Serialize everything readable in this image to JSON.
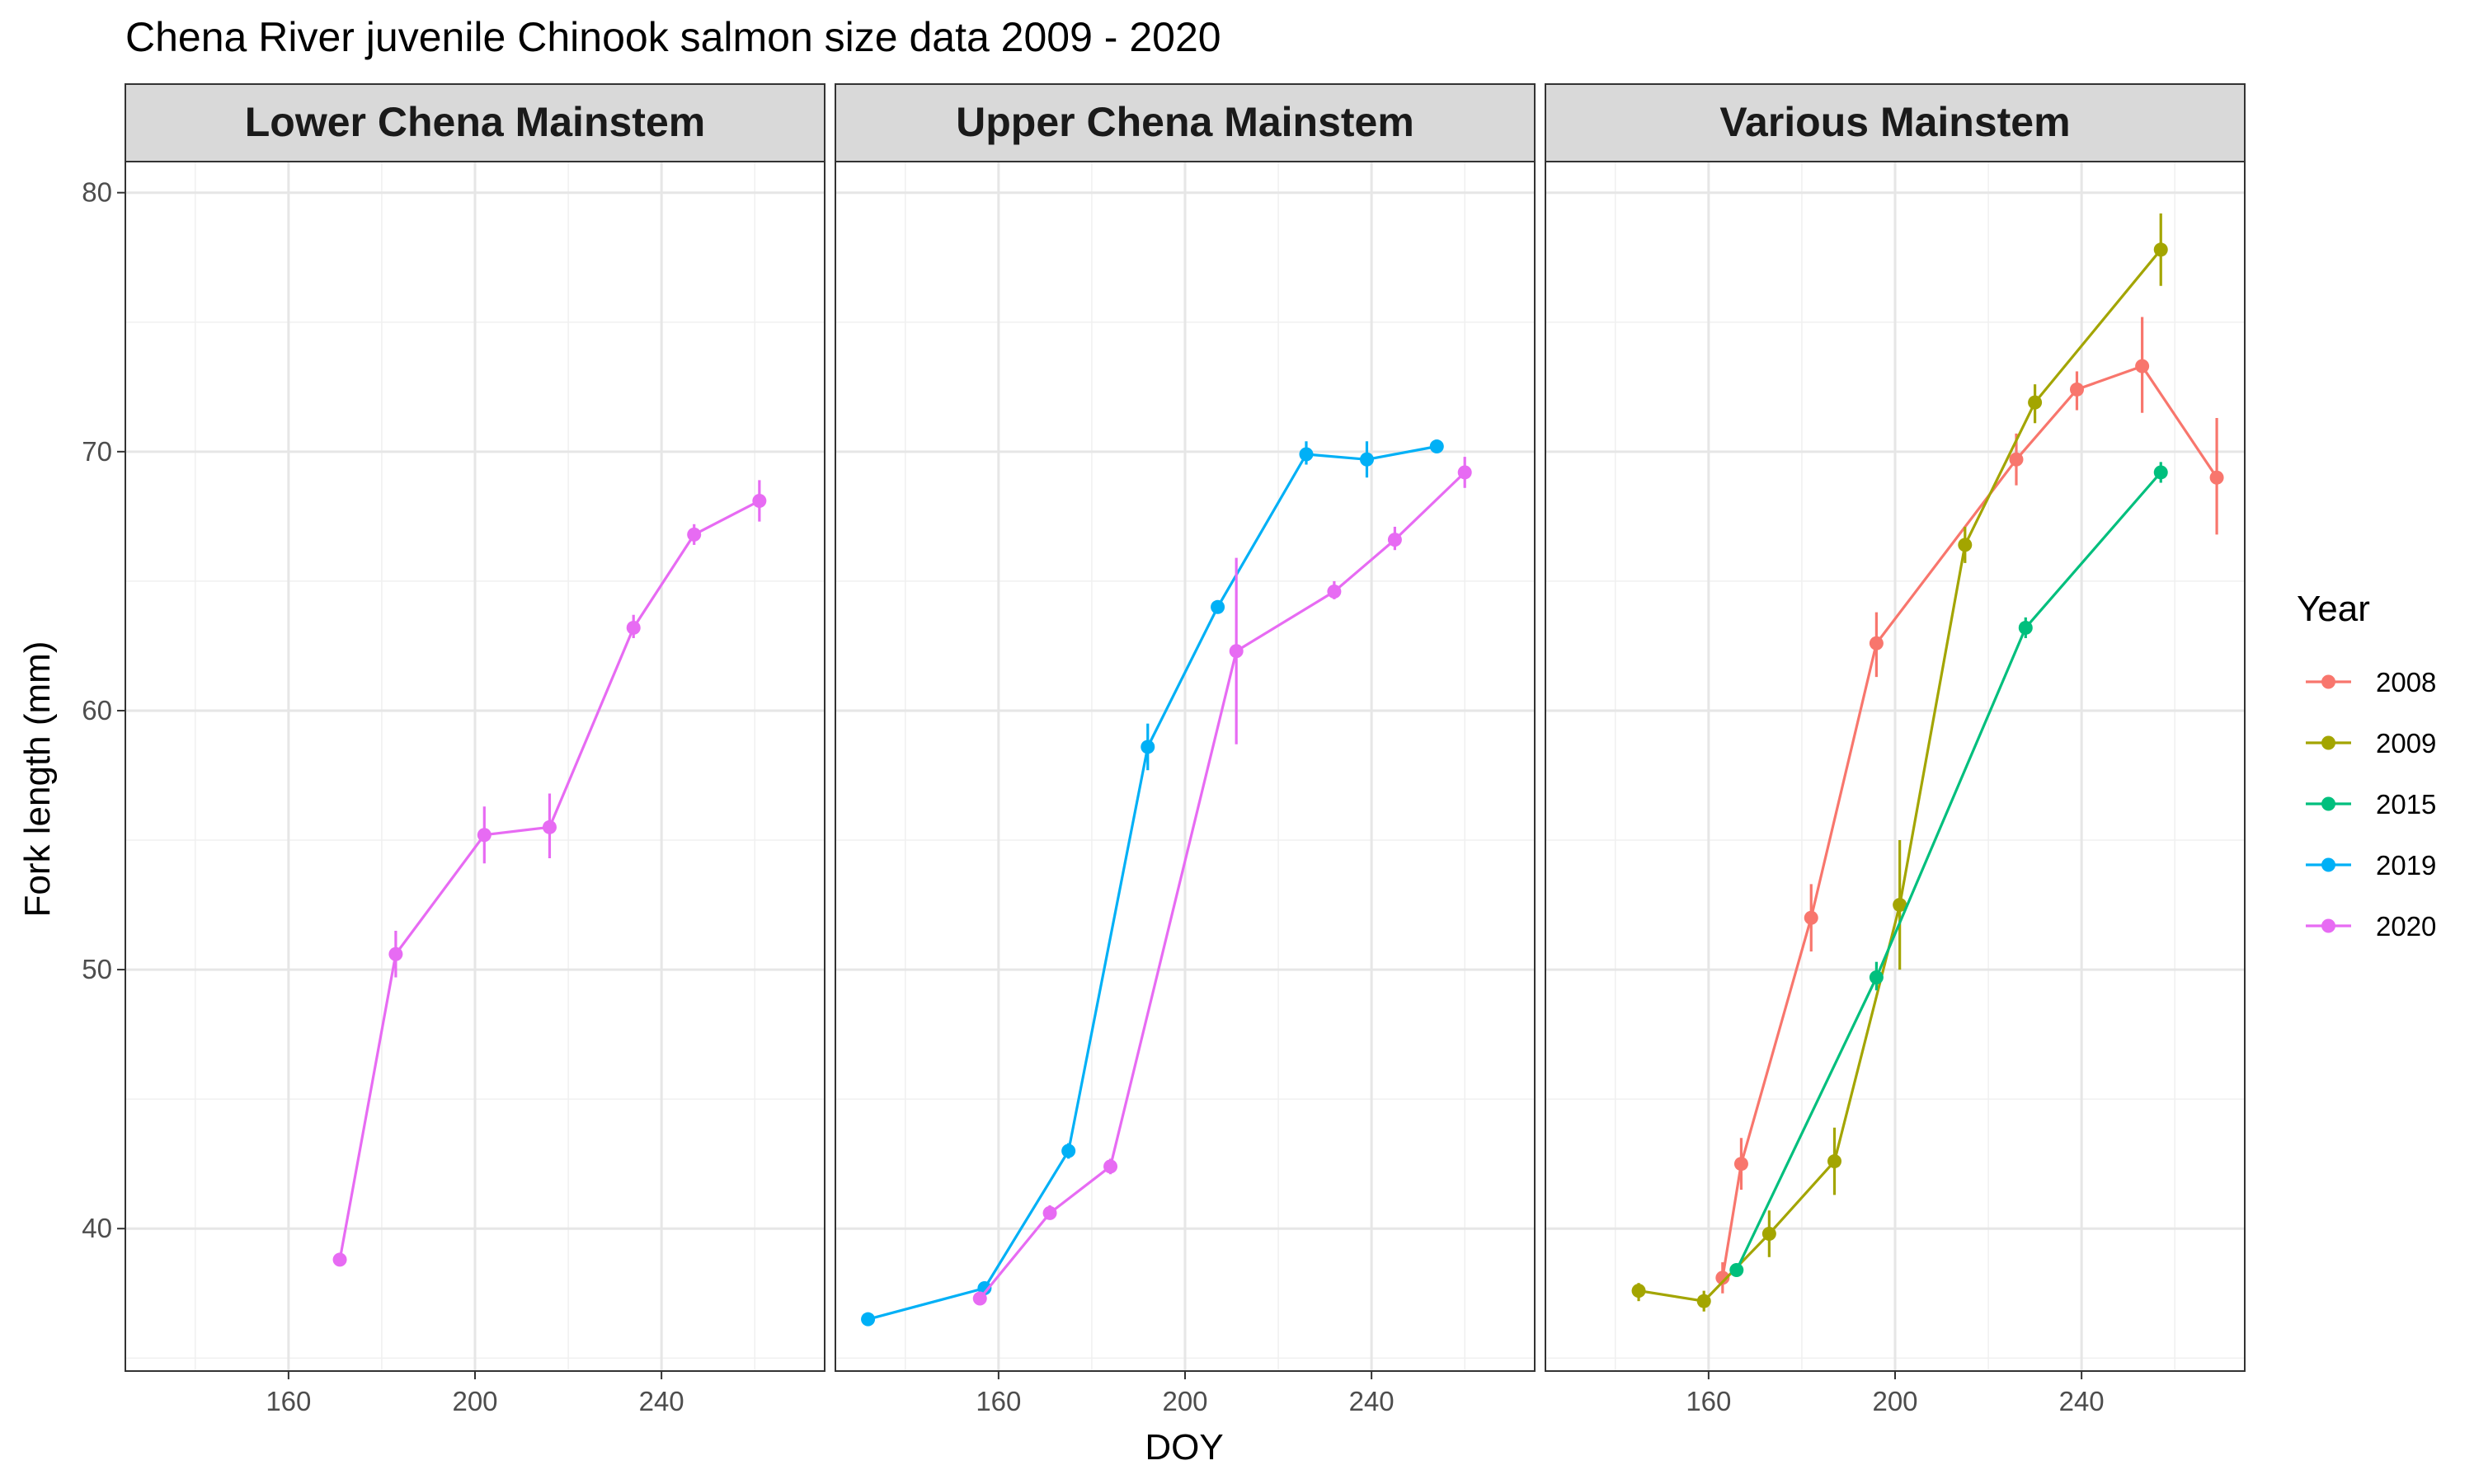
{
  "chart_data": {
    "type": "line",
    "title": "Chena River juvenile Chinook salmon size data 2009 - 2020",
    "xlabel": "DOY",
    "ylabel": "Fork length (mm)",
    "xlim": [
      125,
      275
    ],
    "ylim": [
      34.5,
      81.2
    ],
    "x_ticks": [
      160,
      200,
      240
    ],
    "y_ticks": [
      40,
      50,
      60,
      70,
      80
    ],
    "grid": true,
    "legend": {
      "title": "Year",
      "placement": "right",
      "entries": [
        {
          "name": "2008",
          "color": "#F8766D"
        },
        {
          "name": "2009",
          "color": "#A3A500"
        },
        {
          "name": "2015",
          "color": "#00BF7D"
        },
        {
          "name": "2019",
          "color": "#00B0F6"
        },
        {
          "name": "2020",
          "color": "#E76BF3"
        }
      ]
    },
    "panels": [
      {
        "name": "Lower Chena Mainstem",
        "series": [
          {
            "year": "2020",
            "color": "#E76BF3",
            "points": [
              {
                "x": 171,
                "y": 38.8,
                "lo": 38.8,
                "hi": 38.8
              },
              {
                "x": 183,
                "y": 50.6,
                "lo": 49.7,
                "hi": 51.5
              },
              {
                "x": 202,
                "y": 55.2,
                "lo": 54.1,
                "hi": 56.3
              },
              {
                "x": 216,
                "y": 55.5,
                "lo": 54.3,
                "hi": 56.8
              },
              {
                "x": 234,
                "y": 63.2,
                "lo": 62.8,
                "hi": 63.7
              },
              {
                "x": 247,
                "y": 66.8,
                "lo": 66.4,
                "hi": 67.2
              },
              {
                "x": 261,
                "y": 68.1,
                "lo": 67.3,
                "hi": 68.9
              }
            ]
          }
        ]
      },
      {
        "name": "Upper Chena Mainstem",
        "series": [
          {
            "year": "2019",
            "color": "#00B0F6",
            "points": [
              {
                "x": 132,
                "y": 36.5,
                "lo": 36.4,
                "hi": 36.6
              },
              {
                "x": 157,
                "y": 37.7,
                "lo": 37.6,
                "hi": 37.9
              },
              {
                "x": 175,
                "y": 43.0,
                "lo": 42.7,
                "hi": 43.3
              },
              {
                "x": 192,
                "y": 58.6,
                "lo": 57.7,
                "hi": 59.5
              },
              {
                "x": 207,
                "y": 64.0,
                "lo": 63.9,
                "hi": 64.2
              },
              {
                "x": 226,
                "y": 69.9,
                "lo": 69.5,
                "hi": 70.4
              },
              {
                "x": 239,
                "y": 69.7,
                "lo": 69.0,
                "hi": 70.4
              },
              {
                "x": 254,
                "y": 70.2,
                "lo": 70.0,
                "hi": 70.4
              }
            ]
          },
          {
            "year": "2020",
            "color": "#E76BF3",
            "points": [
              {
                "x": 156,
                "y": 37.3,
                "lo": 37.1,
                "hi": 37.5
              },
              {
                "x": 171,
                "y": 40.6,
                "lo": 40.4,
                "hi": 40.9
              },
              {
                "x": 184,
                "y": 42.4,
                "lo": 42.1,
                "hi": 42.7
              },
              {
                "x": 211,
                "y": 62.3,
                "lo": 58.7,
                "hi": 65.9
              },
              {
                "x": 232,
                "y": 64.6,
                "lo": 64.3,
                "hi": 65.0
              },
              {
                "x": 245,
                "y": 66.6,
                "lo": 66.2,
                "hi": 67.1
              },
              {
                "x": 260,
                "y": 69.2,
                "lo": 68.6,
                "hi": 69.8
              }
            ]
          }
        ]
      },
      {
        "name": "Various Mainstem",
        "series": [
          {
            "year": "2008",
            "color": "#F8766D",
            "points": [
              {
                "x": 163,
                "y": 38.1,
                "lo": 37.5,
                "hi": 38.7
              },
              {
                "x": 167,
                "y": 42.5,
                "lo": 41.5,
                "hi": 43.5
              },
              {
                "x": 182,
                "y": 52.0,
                "lo": 50.7,
                "hi": 53.3
              },
              {
                "x": 196,
                "y": 62.6,
                "lo": 61.3,
                "hi": 63.8
              },
              {
                "x": 226,
                "y": 69.7,
                "lo": 68.7,
                "hi": 70.7
              },
              {
                "x": 239,
                "y": 72.4,
                "lo": 71.6,
                "hi": 73.1
              },
              {
                "x": 253,
                "y": 73.3,
                "lo": 71.5,
                "hi": 75.2
              },
              {
                "x": 269,
                "y": 69.0,
                "lo": 66.8,
                "hi": 71.3
              }
            ]
          },
          {
            "year": "2009",
            "color": "#A3A500",
            "points": [
              {
                "x": 145,
                "y": 37.6,
                "lo": 37.2,
                "hi": 37.9
              },
              {
                "x": 159,
                "y": 37.2,
                "lo": 36.8,
                "hi": 37.6
              },
              {
                "x": 173,
                "y": 39.8,
                "lo": 38.9,
                "hi": 40.7
              },
              {
                "x": 187,
                "y": 42.6,
                "lo": 41.3,
                "hi": 43.9
              },
              {
                "x": 201,
                "y": 52.5,
                "lo": 50.0,
                "hi": 55.0
              },
              {
                "x": 215,
                "y": 66.4,
                "lo": 65.7,
                "hi": 67.1
              },
              {
                "x": 230,
                "y": 71.9,
                "lo": 71.1,
                "hi": 72.6
              },
              {
                "x": 257,
                "y": 77.8,
                "lo": 76.4,
                "hi": 79.2
              }
            ]
          },
          {
            "year": "2015",
            "color": "#00BF7D",
            "points": [
              {
                "x": 166,
                "y": 38.4,
                "lo": 38.2,
                "hi": 38.6
              },
              {
                "x": 196,
                "y": 49.7,
                "lo": 49.2,
                "hi": 50.3
              },
              {
                "x": 228,
                "y": 63.2,
                "lo": 62.8,
                "hi": 63.6
              },
              {
                "x": 257,
                "y": 69.2,
                "lo": 68.8,
                "hi": 69.6
              }
            ]
          }
        ]
      }
    ]
  }
}
